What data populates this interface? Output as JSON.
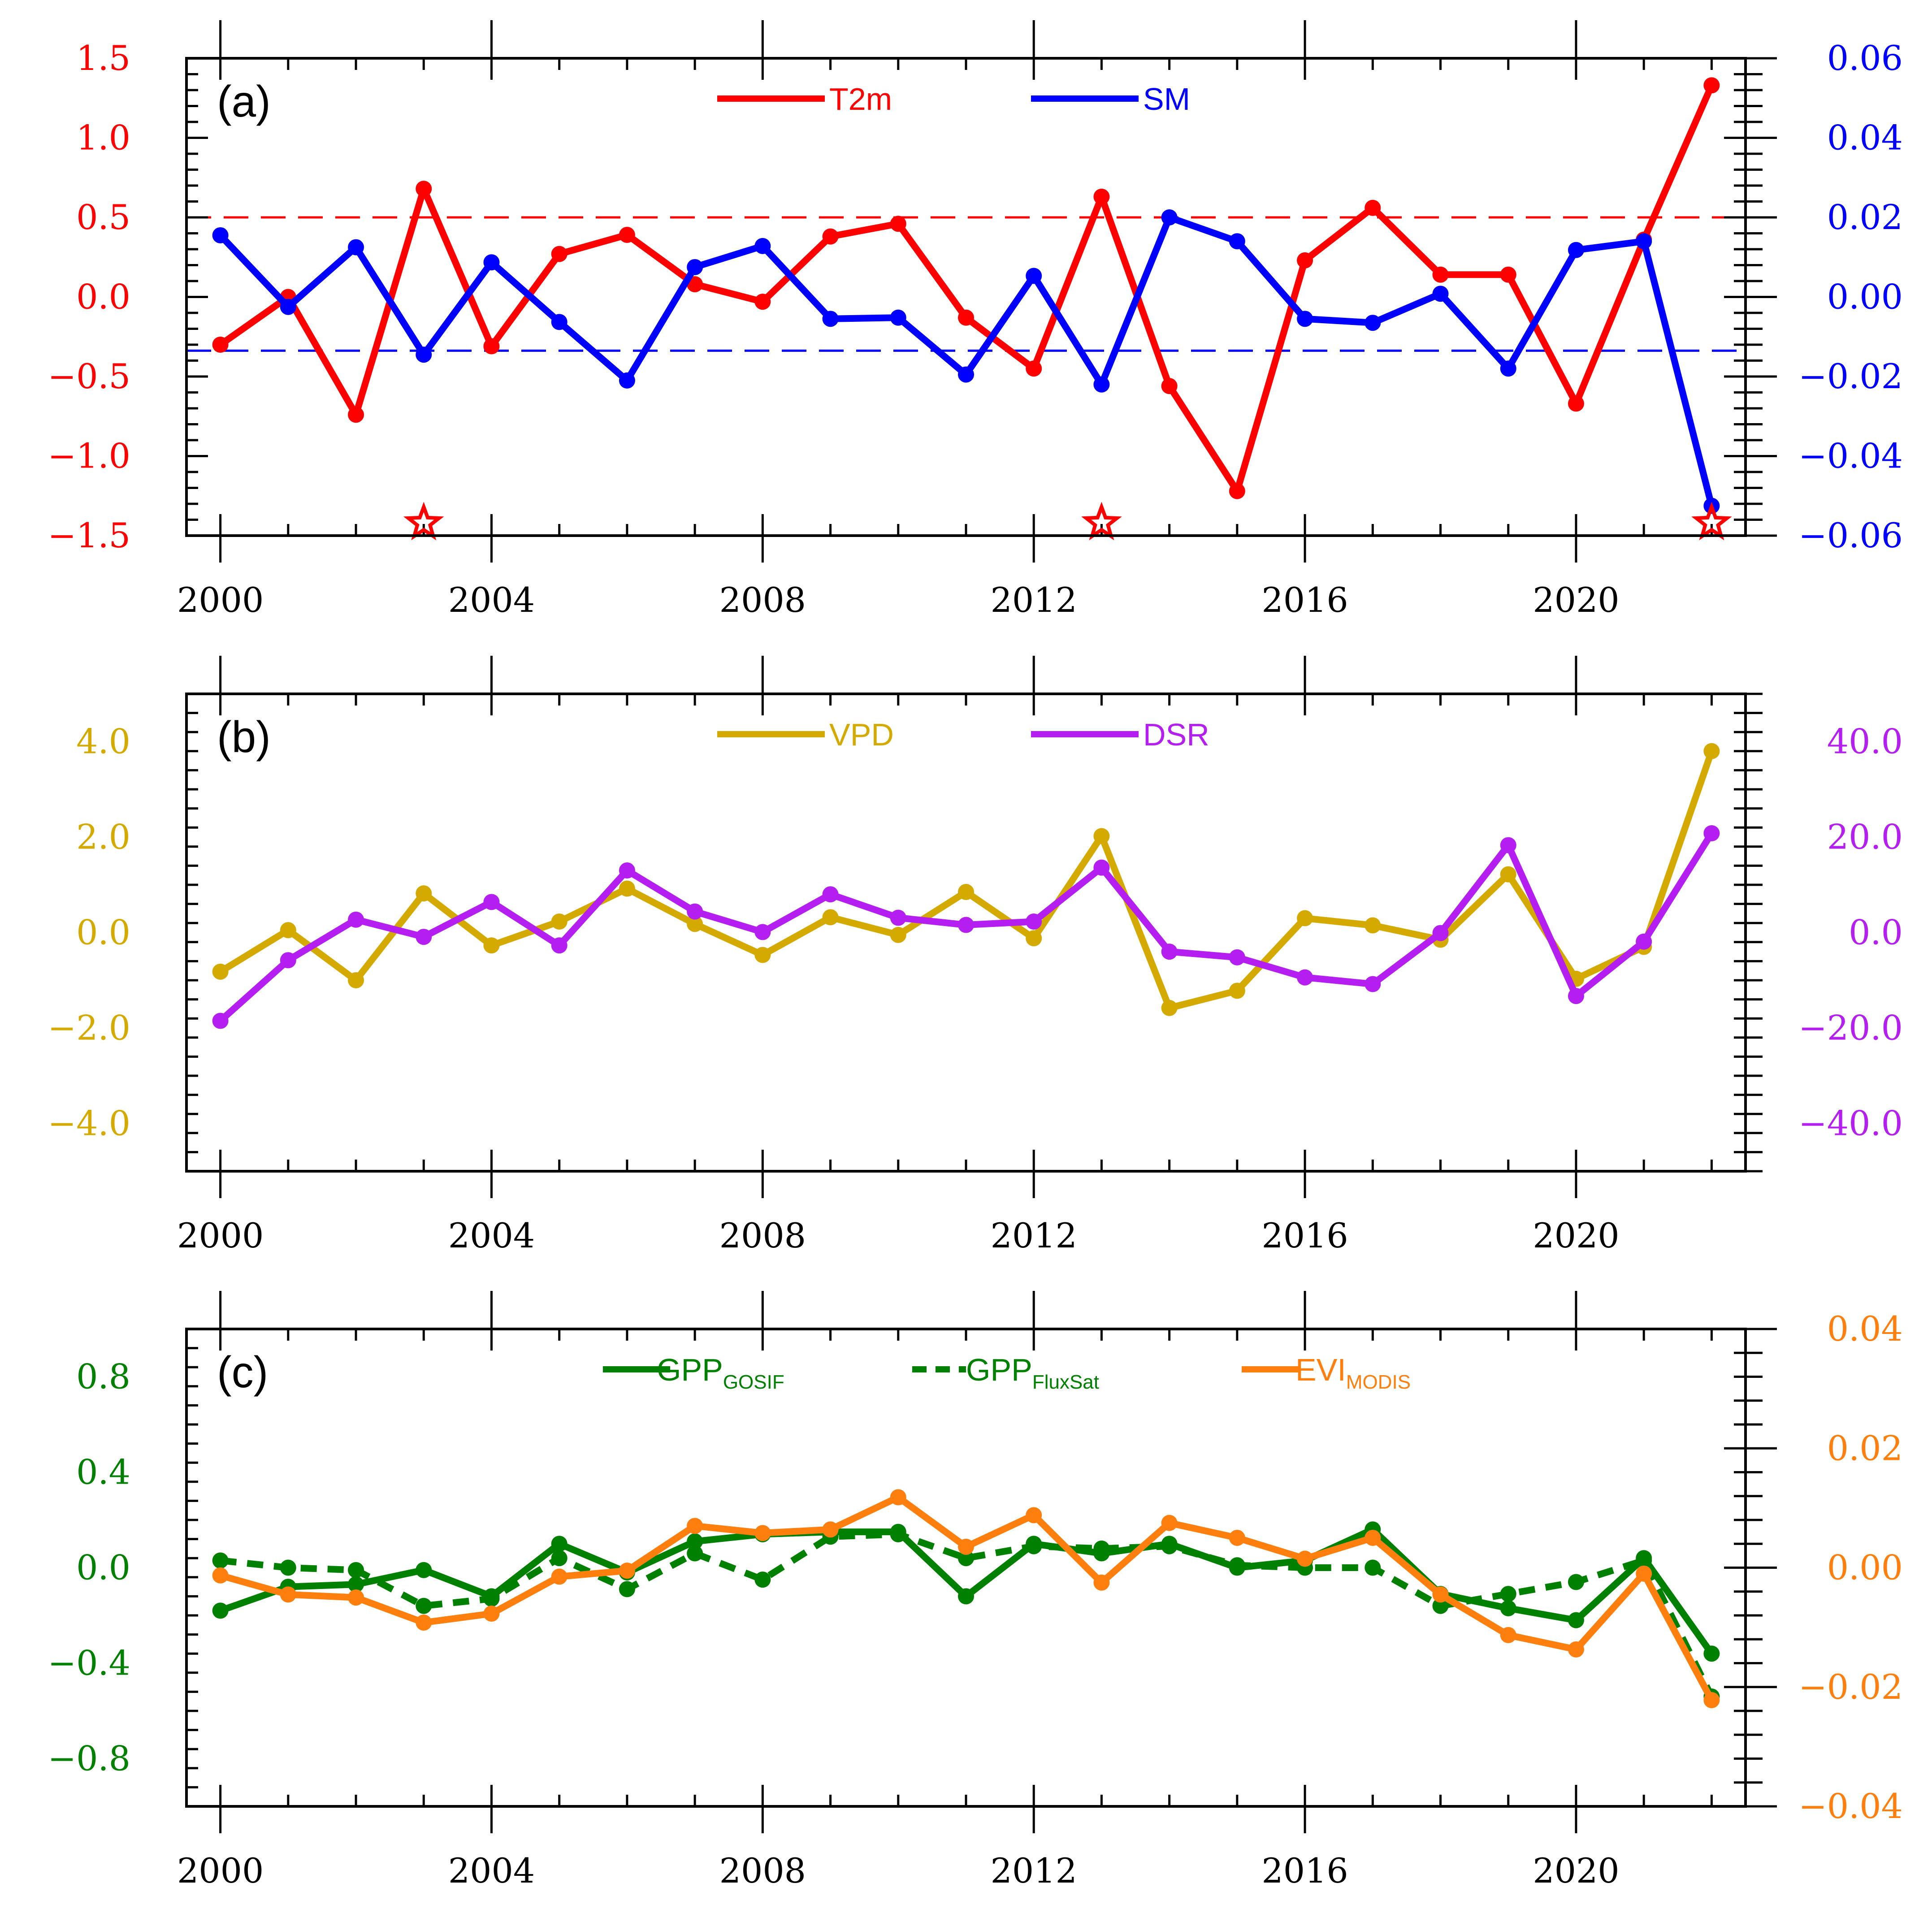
{
  "chart_data": [
    {
      "panel_label": "(a)",
      "type": "line",
      "x": [
        2000,
        2001,
        2002,
        2003,
        2004,
        2005,
        2006,
        2007,
        2008,
        2009,
        2010,
        2011,
        2012,
        2013,
        2014,
        2015,
        2016,
        2017,
        2018,
        2019,
        2020,
        2021,
        2022
      ],
      "xlim": [
        1999.5,
        2022.5
      ],
      "xticks": [
        2000,
        2004,
        2008,
        2012,
        2016,
        2020
      ],
      "xtick_labels": [
        "2000",
        "2004",
        "2008",
        "2012",
        "2016",
        "2020"
      ],
      "left_axis": {
        "ylim": [
          -1.5,
          1.5
        ],
        "ticks": [
          -1.5,
          -1.0,
          -0.5,
          0.0,
          0.5,
          1.0,
          1.5
        ],
        "tick_labels": [
          "−1.5",
          "−1.0",
          "−0.5",
          "0.0",
          "0.5",
          "1.0",
          "1.5"
        ],
        "color": "#ff0000"
      },
      "right_axis": {
        "ylim": [
          -0.06,
          0.06
        ],
        "ticks": [
          -0.06,
          -0.04,
          -0.02,
          0.0,
          0.02,
          0.04,
          0.06
        ],
        "tick_labels": [
          "−0.06",
          "−0.04",
          "−0.02",
          "0.00",
          "0.02",
          "0.04",
          "0.06"
        ],
        "color": "#0000ff"
      },
      "series": [
        {
          "name": "T2m",
          "axis": "left",
          "color": "#ff0000",
          "style": "solid",
          "values": [
            -0.3,
            0.0,
            -0.74,
            0.68,
            -0.31,
            0.27,
            0.39,
            0.08,
            -0.03,
            0.38,
            0.46,
            -0.13,
            -0.45,
            0.63,
            -0.56,
            -1.22,
            0.23,
            0.56,
            0.14,
            0.14,
            -0.67,
            0.36,
            1.33
          ]
        },
        {
          "name": "SM",
          "axis": "right",
          "color": "#0000ff",
          "style": "solid",
          "values": [
            0.0155,
            -0.0025,
            0.0125,
            -0.0145,
            0.0087,
            -0.0063,
            -0.021,
            0.0075,
            0.0128,
            -0.0055,
            -0.0052,
            -0.0195,
            0.0053,
            -0.022,
            0.02,
            0.014,
            -0.0055,
            -0.0065,
            0.0008,
            -0.018,
            0.0118,
            0.014,
            -0.0525
          ]
        }
      ],
      "reference_lines": [
        {
          "axis": "left",
          "value": 0.5,
          "color": "#ff0000",
          "style": "dashed"
        },
        {
          "axis": "right",
          "value": -0.0135,
          "color": "#0000ff",
          "style": "dashed"
        }
      ],
      "markers": [
        {
          "shape": "star",
          "color": "#ff0000",
          "x": 2003,
          "at": "bottom"
        },
        {
          "shape": "star",
          "color": "#ff0000",
          "x": 2013,
          "at": "bottom"
        },
        {
          "shape": "star",
          "color": "#ff0000",
          "x": 2022,
          "at": "bottom"
        }
      ],
      "legend": [
        {
          "label": "T2m",
          "sub": "",
          "color": "#ff0000",
          "style": "solid"
        },
        {
          "label": "SM",
          "sub": "",
          "color": "#0000ff",
          "style": "solid"
        }
      ],
      "legend_placement": "top-center",
      "grid": false
    },
    {
      "panel_label": "(b)",
      "type": "line",
      "x": [
        2000,
        2001,
        2002,
        2003,
        2004,
        2005,
        2006,
        2007,
        2008,
        2009,
        2010,
        2011,
        2012,
        2013,
        2014,
        2015,
        2016,
        2017,
        2018,
        2019,
        2020,
        2021,
        2022
      ],
      "xlim": [
        1999.5,
        2022.5
      ],
      "xticks": [
        2000,
        2004,
        2008,
        2012,
        2016,
        2020
      ],
      "xtick_labels": [
        "2000",
        "2004",
        "2008",
        "2012",
        "2016",
        "2020"
      ],
      "left_axis": {
        "ylim": [
          -5.0,
          5.0
        ],
        "ticks": [
          -4.0,
          -2.0,
          0.0,
          2.0,
          4.0
        ],
        "tick_labels": [
          "−4.0",
          "−2.0",
          "0.0",
          "2.0",
          "4.0"
        ],
        "color": "#d4aa00"
      },
      "right_axis": {
        "ylim": [
          -50,
          50
        ],
        "ticks": [
          -40,
          -20,
          0,
          20,
          40
        ],
        "tick_labels": [
          "−40.0",
          "−20.0",
          "0.0",
          "20.0",
          "40.0"
        ],
        "color": "#b41ef0"
      },
      "series": [
        {
          "name": "VPD",
          "axis": "left",
          "color": "#d4aa00",
          "style": "solid",
          "values": [
            -0.82,
            0.05,
            -1.0,
            0.82,
            -0.27,
            0.23,
            0.92,
            0.18,
            -0.47,
            0.32,
            -0.05,
            0.85,
            -0.12,
            2.02,
            -1.58,
            -1.22,
            0.3,
            0.15,
            -0.15,
            1.22,
            -0.97,
            -0.3,
            3.8
          ]
        },
        {
          "name": "DSR",
          "axis": "right",
          "color": "#b41ef0",
          "style": "solid",
          "values": [
            -18.5,
            -5.8,
            2.7,
            -0.9,
            6.4,
            -2.7,
            13.0,
            4.4,
            0.1,
            8.0,
            3.1,
            1.6,
            2.3,
            13.6,
            -4.0,
            -5.2,
            -9.4,
            -10.8,
            -0.1,
            18.3,
            -13.3,
            -1.9,
            20.8
          ]
        }
      ],
      "reference_lines": [],
      "markers": [],
      "legend": [
        {
          "label": "VPD",
          "sub": "",
          "color": "#d4aa00",
          "style": "solid"
        },
        {
          "label": "DSR",
          "sub": "",
          "color": "#b41ef0",
          "style": "solid"
        }
      ],
      "legend_placement": "top-center",
      "grid": false
    },
    {
      "panel_label": "(c)",
      "type": "line",
      "x": [
        2000,
        2001,
        2002,
        2003,
        2004,
        2005,
        2006,
        2007,
        2008,
        2009,
        2010,
        2011,
        2012,
        2013,
        2014,
        2015,
        2016,
        2017,
        2018,
        2019,
        2020,
        2021,
        2022
      ],
      "xlim": [
        1999.5,
        2022.5
      ],
      "xticks": [
        2000,
        2004,
        2008,
        2012,
        2016,
        2020
      ],
      "xtick_labels": [
        "2000",
        "2004",
        "2008",
        "2012",
        "2016",
        "2020"
      ],
      "left_axis": {
        "ylim": [
          -1.0,
          1.0
        ],
        "ticks": [
          -0.8,
          -0.4,
          0.0,
          0.4,
          0.8
        ],
        "tick_labels": [
          "−0.8",
          "−0.4",
          "0.0",
          "0.4",
          "0.8"
        ],
        "color": "#008000"
      },
      "right_axis": {
        "ylim": [
          -0.04,
          0.04
        ],
        "ticks": [
          -0.04,
          -0.02,
          0.0,
          0.02,
          0.04
        ],
        "tick_labels": [
          "−0.04",
          "−0.02",
          "0.00",
          "0.02",
          "0.04"
        ],
        "color": "#ff7f0e"
      },
      "series": [
        {
          "name": "GPP_GOSIF",
          "axis": "left",
          "color": "#008000",
          "style": "solid",
          "values": [
            -0.18,
            -0.08,
            -0.07,
            -0.01,
            -0.12,
            0.1,
            -0.02,
            0.11,
            0.14,
            0.15,
            0.15,
            -0.12,
            0.1,
            0.06,
            0.1,
            0.0,
            0.03,
            0.16,
            -0.11,
            -0.17,
            -0.22,
            0.04,
            -0.36
          ]
        },
        {
          "name": "GPP_FluxSat",
          "axis": "left",
          "color": "#008000",
          "style": "dashed",
          "values": [
            0.03,
            0.0,
            -0.01,
            -0.16,
            -0.13,
            0.04,
            -0.09,
            0.06,
            -0.05,
            0.13,
            0.14,
            0.04,
            0.09,
            0.08,
            0.09,
            0.01,
            0.0,
            0.0,
            -0.16,
            -0.11,
            -0.06,
            0.03,
            -0.54
          ]
        },
        {
          "name": "EVI_MODIS",
          "axis": "right",
          "color": "#ff7f0e",
          "style": "solid",
          "values": [
            -0.0013,
            -0.0045,
            -0.005,
            -0.0092,
            -0.0077,
            -0.0015,
            -0.0005,
            0.007,
            0.0058,
            0.0064,
            0.0118,
            0.0035,
            0.0088,
            -0.0025,
            0.0075,
            0.005,
            0.0015,
            0.005,
            -0.0045,
            -0.0113,
            -0.0137,
            -0.001,
            -0.0222
          ]
        }
      ],
      "reference_lines": [],
      "markers": [],
      "legend": [
        {
          "label": "GPP",
          "sub": "GOSIF",
          "color": "#008000",
          "style": "solid"
        },
        {
          "label": "GPP",
          "sub": "FluxSat",
          "color": "#008000",
          "style": "dashed"
        },
        {
          "label": "EVI",
          "sub": "MODIS",
          "color": "#ff7f0e",
          "style": "solid"
        }
      ],
      "legend_placement": "top-center",
      "grid": false
    }
  ]
}
